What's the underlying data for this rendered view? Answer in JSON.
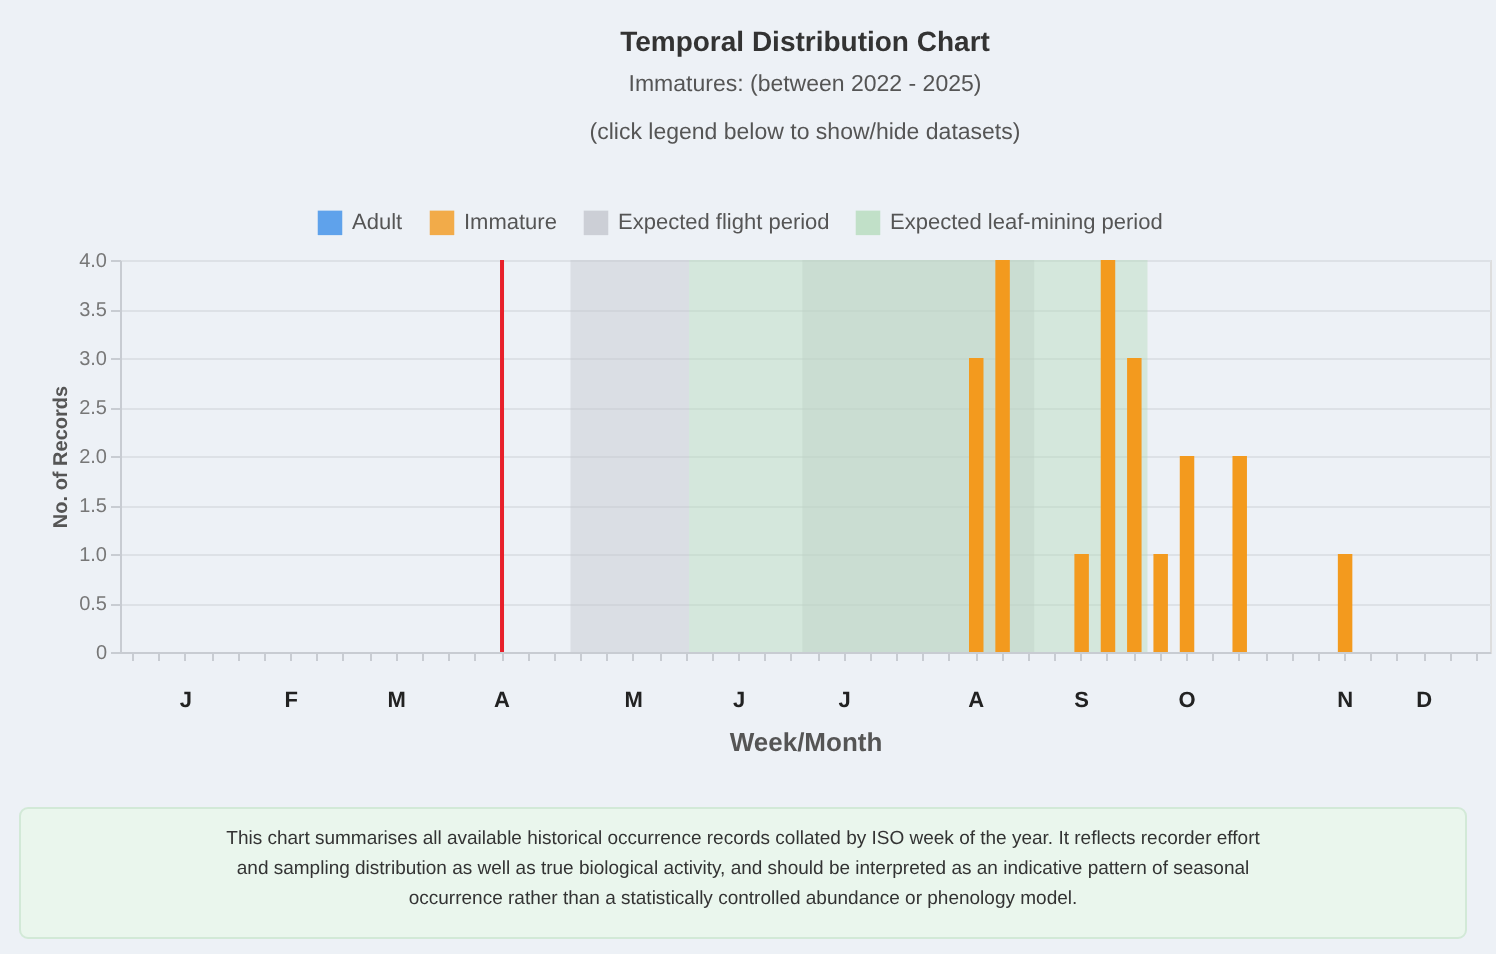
{
  "chart_data": {
    "type": "bar",
    "title": "Temporal Distribution Chart",
    "subtitle": "Immatures: (between 2022 - 2025)",
    "annotations": [
      "(click legend below to show/hide datasets)",
      "This chart summarises all available historical occurrence records collated by ISO week of the year. It reflects recorder effort and sampling distribution as well as true biological activity, and should be interpreted as an indicative pattern of seasonal occurrence rather than a statistically controlled abundance or phenology model."
    ],
    "xlabel": "Week/Month",
    "ylabel": "No. of Records",
    "categories": [
      null,
      null,
      "J",
      null,
      null,
      null,
      "F",
      null,
      null,
      null,
      "M",
      null,
      null,
      null,
      "A",
      null,
      null,
      null,
      null,
      "M",
      null,
      null,
      null,
      "J",
      null,
      null,
      null,
      "J",
      null,
      null,
      null,
      null,
      "A",
      null,
      null,
      null,
      "S",
      null,
      null,
      null,
      "O",
      null,
      null,
      null,
      null,
      null,
      "N",
      null,
      null,
      "D",
      null,
      null
    ],
    "series": [
      {
        "name": "Adult",
        "color": "#3b8ee8",
        "values": [
          null,
          null,
          null,
          null,
          null,
          null,
          null,
          null,
          null,
          null,
          null,
          null,
          null,
          null,
          null,
          null,
          null,
          null,
          null,
          null,
          null,
          null,
          null,
          null,
          null,
          null,
          null,
          null,
          null,
          null,
          null,
          null,
          null,
          null,
          null,
          null,
          null,
          null,
          null,
          null,
          null,
          null,
          null,
          null,
          null,
          null,
          null,
          null,
          null,
          null,
          null,
          null
        ]
      },
      {
        "name": "Immature",
        "color": "#f39a1e",
        "values": [
          null,
          null,
          null,
          null,
          null,
          null,
          null,
          null,
          null,
          null,
          null,
          null,
          null,
          null,
          null,
          null,
          null,
          null,
          null,
          null,
          null,
          null,
          null,
          null,
          null,
          null,
          null,
          null,
          null,
          null,
          null,
          null,
          3,
          4,
          null,
          null,
          1,
          4,
          3,
          1,
          2,
          null,
          2,
          null,
          null,
          null,
          1,
          null,
          null,
          null,
          null,
          null
        ]
      },
      {
        "name": "Expected flight period",
        "color": "#c3c7ce",
        "values": [
          null,
          null,
          null,
          null,
          null,
          null,
          null,
          null,
          null,
          null,
          null,
          null,
          null,
          null,
          null,
          null,
          null,
          null,
          null,
          null,
          null,
          null,
          null,
          null,
          null,
          null,
          null,
          null,
          null,
          null,
          null,
          null,
          null,
          null,
          null,
          null,
          null,
          null,
          null,
          null,
          null,
          null,
          null,
          null,
          null,
          null,
          null,
          null,
          null,
          null,
          null,
          null
        ]
      },
      {
        "name": "Expected leaf-mining period",
        "color": "#b5dcbd",
        "values": [
          null,
          null,
          null,
          null,
          null,
          null,
          null,
          null,
          null,
          null,
          null,
          null,
          null,
          null,
          null,
          null,
          null,
          null,
          null,
          null,
          null,
          null,
          null,
          null,
          null,
          null,
          null,
          null,
          null,
          null,
          null,
          null,
          null,
          null,
          null,
          null,
          null,
          null,
          null,
          null,
          null,
          null,
          null,
          null,
          null,
          null,
          null,
          null,
          null,
          null,
          null,
          null
        ]
      }
    ],
    "ylim": [
      0,
      4
    ],
    "yticks": [
      0,
      0.5,
      {
        "value": 1,
        "label": "1.0"
      },
      1.5,
      {
        "value": 2,
        "label": "2.0"
      },
      2.5,
      {
        "value": 3,
        "label": "3.0"
      },
      3.5,
      {
        "value": 4,
        "label": "4.0"
      }
    ],
    "grid": "y",
    "legend": "top"
  }
}
